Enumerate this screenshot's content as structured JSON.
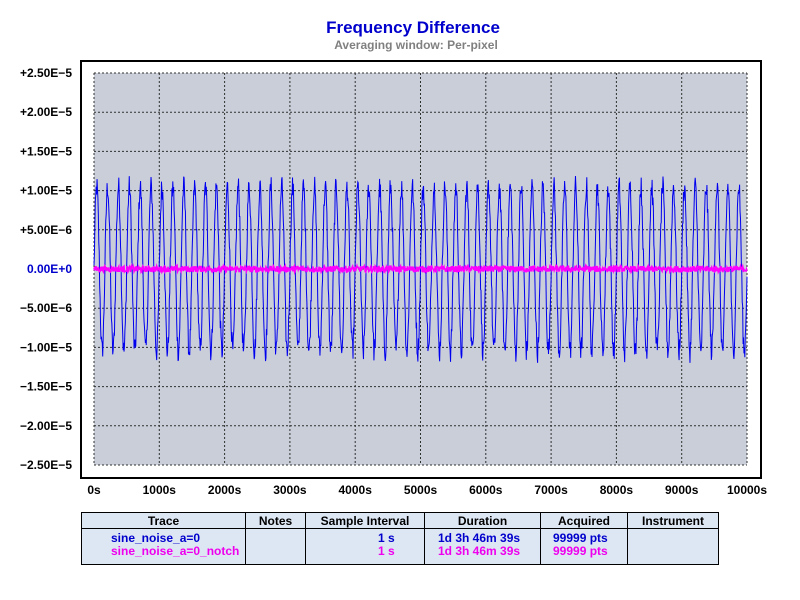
{
  "chart_data": {
    "type": "line",
    "title": "Frequency Difference",
    "subtitle": "Averaging window: Per-pixel",
    "xlabel": "",
    "ylabel": "",
    "xlim": [
      0,
      10000
    ],
    "ylim": [
      -2.5e-05,
      2.5e-05
    ],
    "x_ticks": [
      "0s",
      "1000s",
      "2000s",
      "3000s",
      "4000s",
      "5000s",
      "6000s",
      "7000s",
      "8000s",
      "9000s",
      "10000s"
    ],
    "y_ticks": [
      "+2.50E−5",
      "+2.00E−5",
      "+1.50E−5",
      "+1.00E−5",
      "+5.00E−6",
      "0.00E+0",
      "−5.00E−6",
      "−1.00E−5",
      "−1.50E−5",
      "−2.00E−5",
      "−2.50E−5"
    ],
    "grid": true,
    "series": [
      {
        "name": "sine_noise_a=0",
        "color": "#0000ee",
        "cycles": 60,
        "amplitude": 1.05e-05,
        "noise": 1.5e-06
      },
      {
        "name": "sine_noise_a=0_notch",
        "color": "#ff00ff",
        "cycles": 0,
        "amplitude": 0,
        "noise": 4e-07
      }
    ]
  },
  "table": {
    "headers": [
      "Trace",
      "Notes",
      "Sample Interval",
      "Duration",
      "Acquired",
      "Instrument"
    ],
    "rows": [
      {
        "trace": "sine_noise_a=0",
        "notes": "",
        "interval": "1 s",
        "duration": "1d 3h 46m 39s",
        "acquired": "99999 pts",
        "instrument": "",
        "color": "#0000cc"
      },
      {
        "trace": "sine_noise_a=0_notch",
        "notes": "",
        "interval": "1 s",
        "duration": "1d 3h 46m 39s",
        "acquired": "99999 pts",
        "instrument": "",
        "color": "#ee00ee"
      }
    ]
  }
}
